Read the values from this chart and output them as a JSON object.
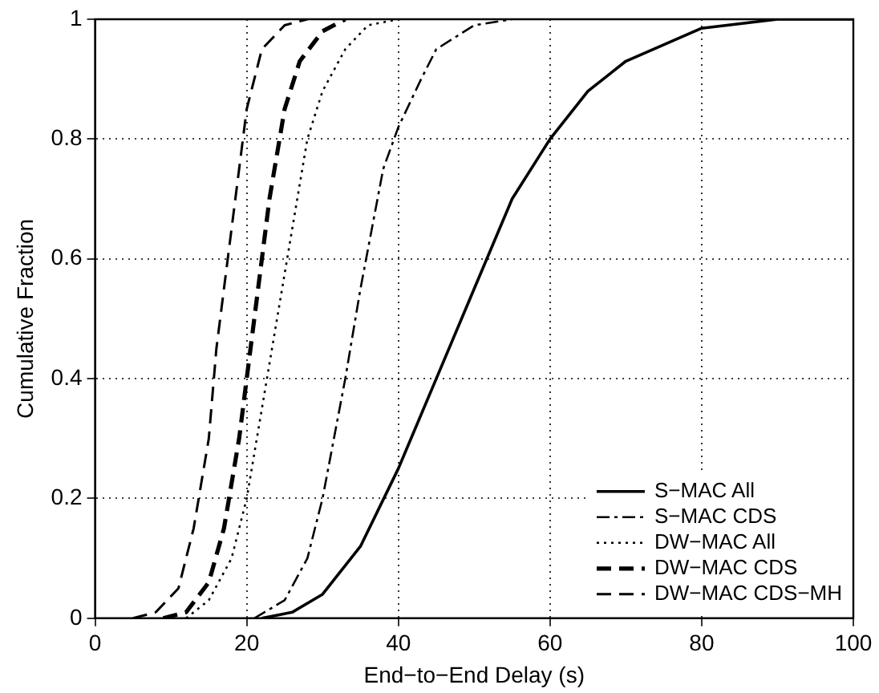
{
  "chart_data": {
    "type": "line",
    "xlabel": "End−to−End Delay (s)",
    "ylabel": "Cumulative Fraction",
    "xlim": [
      0,
      100
    ],
    "ylim": [
      0,
      1
    ],
    "xticks": [
      0,
      20,
      40,
      60,
      80,
      100
    ],
    "yticks": [
      0,
      0.2,
      0.4,
      0.6,
      0.8,
      1
    ],
    "grid": true,
    "legend": "bottom right",
    "marker": "none",
    "series": [
      {
        "name": "S−MAC All",
        "color": "#000000",
        "line_style": "solid",
        "x": [
          22,
          26,
          30,
          35,
          40,
          45,
          50,
          55,
          60,
          65,
          70,
          80,
          90,
          100
        ],
        "values": [
          0,
          0.01,
          0.04,
          0.12,
          0.25,
          0.4,
          0.55,
          0.7,
          0.8,
          0.88,
          0.93,
          0.985,
          1,
          1
        ]
      },
      {
        "name": "S−MAC CDS",
        "color": "#000000",
        "line_style": "dashdot",
        "x": [
          21,
          25,
          28,
          30,
          33,
          35,
          38,
          40,
          43,
          45,
          50,
          55
        ],
        "values": [
          0,
          0.03,
          0.1,
          0.2,
          0.4,
          0.55,
          0.75,
          0.82,
          0.9,
          0.95,
          0.99,
          1
        ]
      },
      {
        "name": "DW−MAC All",
        "color": "#000000",
        "line_style": "dotted",
        "x": [
          12,
          15,
          18,
          20,
          22,
          24,
          26,
          28,
          30,
          33,
          36,
          40
        ],
        "values": [
          0,
          0.03,
          0.1,
          0.2,
          0.35,
          0.5,
          0.65,
          0.8,
          0.88,
          0.95,
          0.99,
          1
        ]
      },
      {
        "name": "DW−MAC CDS",
        "color": "#000000",
        "line_style": "dashed",
        "x": [
          9,
          12,
          15,
          17,
          19,
          21,
          23,
          25,
          27,
          30,
          33
        ],
        "values": [
          0,
          0.01,
          0.06,
          0.15,
          0.3,
          0.5,
          0.7,
          0.85,
          0.93,
          0.98,
          1
        ]
      },
      {
        "name": "DW−MAC CDS−MH",
        "color": "#000000",
        "line_style": "dashed",
        "x": [
          5,
          8,
          11,
          13,
          15,
          16,
          17,
          19,
          20,
          22,
          25,
          28
        ],
        "values": [
          0,
          0.01,
          0.05,
          0.15,
          0.3,
          0.45,
          0.55,
          0.75,
          0.85,
          0.95,
          0.99,
          1
        ]
      }
    ]
  }
}
